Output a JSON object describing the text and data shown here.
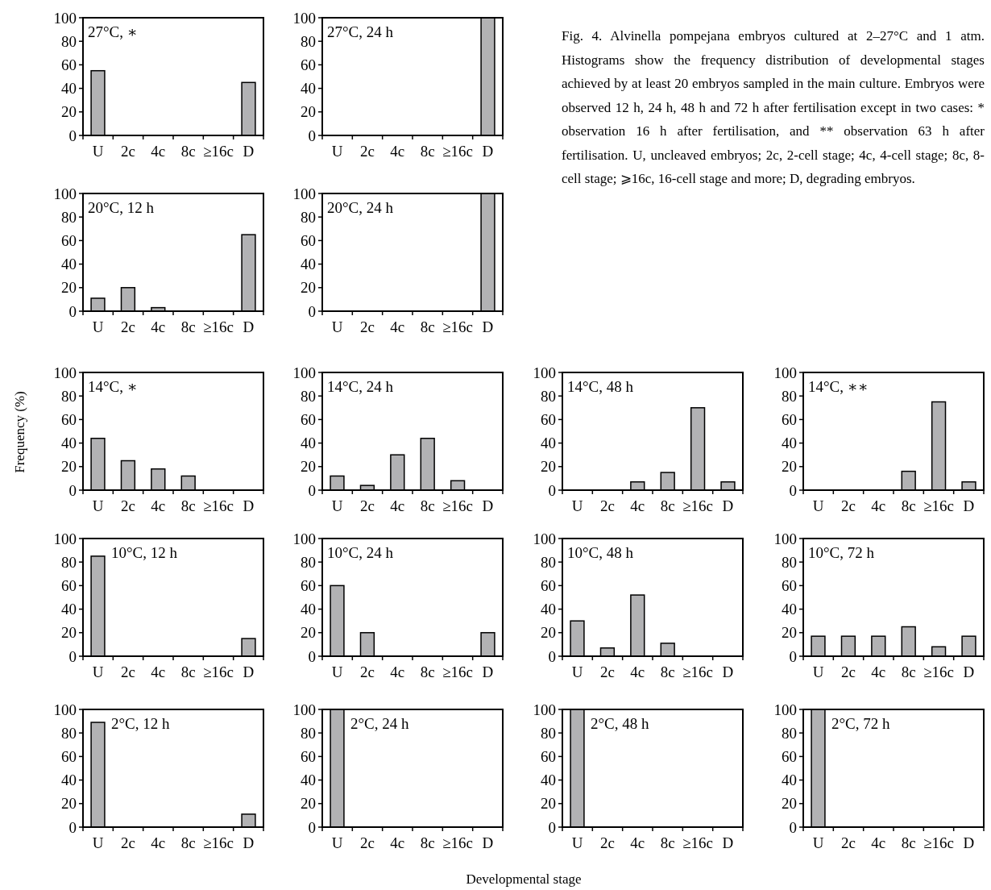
{
  "chart_data": [
    {
      "type": "bar",
      "title": "27°C, ∗",
      "categories": [
        "U",
        "2c",
        "4c",
        "8c",
        "≥16c",
        "D"
      ],
      "values": [
        55,
        0,
        0,
        0,
        0,
        45
      ],
      "color": "#b2b2b4",
      "ylim": [
        0,
        100
      ],
      "yticks": [
        0,
        20,
        40,
        60,
        80,
        100
      ],
      "annotations": [
        "Fig. 4. Alvinella pompejana embryos cultured at 2–27°C and 1 atm. Histograms show the frequency distribution of developmental stages achieved by at least 20 embryos sampled in the main culture. Embryos were observed 12 h, 24 h, 48 h and 72 h after fertilisation except in two cases: * observation 16 h after fertilisation, and ** observation 63 h after fertilisation. U, uncleaved embryos; 2c, 2-cell stage; 4c, 4-cell stage; 8c, 8-cell stage; ⩾16c, 16-cell stage and more; D, degrading embryos."
      ]
    },
    {
      "type": "bar",
      "title": "27°C, 24 h",
      "categories": [
        "U",
        "2c",
        "4c",
        "8c",
        "≥16c",
        "D"
      ],
      "values": [
        0,
        0,
        0,
        0,
        0,
        100
      ],
      "color": "#b2b2b4",
      "ylim": [
        0,
        100
      ],
      "yticks": [
        0,
        20,
        40,
        60,
        80,
        100
      ]
    },
    {
      "type": "bar",
      "title": "20°C, 12 h",
      "categories": [
        "U",
        "2c",
        "4c",
        "8c",
        "≥16c",
        "D"
      ],
      "values": [
        11,
        20,
        3,
        0,
        0,
        65
      ],
      "color": "#b2b2b4",
      "ylim": [
        0,
        100
      ],
      "yticks": [
        0,
        20,
        40,
        60,
        80,
        100
      ]
    },
    {
      "type": "bar",
      "title": "20°C, 24 h",
      "categories": [
        "U",
        "2c",
        "4c",
        "8c",
        "≥16c",
        "D"
      ],
      "values": [
        0,
        0,
        0,
        0,
        0,
        100
      ],
      "color": "#b2b2b4",
      "ylim": [
        0,
        100
      ],
      "yticks": [
        0,
        20,
        40,
        60,
        80,
        100
      ]
    },
    {
      "type": "bar",
      "title": "14°C, ∗",
      "ylabel": "Frequency (%)",
      "categories": [
        "U",
        "2c",
        "4c",
        "8c",
        "≥16c",
        "D"
      ],
      "values": [
        44,
        25,
        18,
        12,
        0,
        0
      ],
      "color": "#b2b2b4",
      "ylim": [
        0,
        100
      ],
      "yticks": [
        0,
        20,
        40,
        60,
        80,
        100
      ]
    },
    {
      "type": "bar",
      "title": "14°C, 24 h",
      "categories": [
        "U",
        "2c",
        "4c",
        "8c",
        "≥16c",
        "D"
      ],
      "values": [
        12,
        4,
        30,
        44,
        8,
        0
      ],
      "color": "#b2b2b4",
      "ylim": [
        0,
        100
      ],
      "yticks": [
        0,
        20,
        40,
        60,
        80,
        100
      ]
    },
    {
      "type": "bar",
      "title": "14°C, 48 h",
      "categories": [
        "U",
        "2c",
        "4c",
        "8c",
        "≥16c",
        "D"
      ],
      "values": [
        0,
        0,
        7,
        15,
        70,
        7
      ],
      "color": "#b2b2b4",
      "ylim": [
        0,
        100
      ],
      "yticks": [
        0,
        20,
        40,
        60,
        80,
        100
      ]
    },
    {
      "type": "bar",
      "title": "14°C, ∗∗",
      "categories": [
        "U",
        "2c",
        "4c",
        "8c",
        "≥16c",
        "D"
      ],
      "values": [
        0,
        0,
        0,
        16,
        75,
        7
      ],
      "color": "#b2b2b4",
      "ylim": [
        0,
        100
      ],
      "yticks": [
        0,
        20,
        40,
        60,
        80,
        100
      ]
    },
    {
      "type": "bar",
      "title": "10°C, 12 h",
      "categories": [
        "U",
        "2c",
        "4c",
        "8c",
        "≥16c",
        "D"
      ],
      "values": [
        85,
        0,
        0,
        0,
        0,
        15
      ],
      "color": "#b2b2b4",
      "ylim": [
        0,
        100
      ],
      "yticks": [
        0,
        20,
        40,
        60,
        80,
        100
      ]
    },
    {
      "type": "bar",
      "title": "10°C, 24 h",
      "categories": [
        "U",
        "2c",
        "4c",
        "8c",
        "≥16c",
        "D"
      ],
      "values": [
        60,
        20,
        0,
        0,
        0,
        20
      ],
      "color": "#b2b2b4",
      "ylim": [
        0,
        100
      ],
      "yticks": [
        0,
        20,
        40,
        60,
        80,
        100
      ]
    },
    {
      "type": "bar",
      "title": "10°C, 48 h",
      "categories": [
        "U",
        "2c",
        "4c",
        "8c",
        "≥16c",
        "D"
      ],
      "values": [
        30,
        7,
        52,
        11,
        0,
        0
      ],
      "color": "#b2b2b4",
      "ylim": [
        0,
        100
      ],
      "yticks": [
        0,
        20,
        40,
        60,
        80,
        100
      ]
    },
    {
      "type": "bar",
      "title": "10°C, 72 h",
      "categories": [
        "U",
        "2c",
        "4c",
        "8c",
        "≥16c",
        "D"
      ],
      "values": [
        17,
        17,
        17,
        25,
        8,
        17
      ],
      "color": "#b2b2b4",
      "ylim": [
        0,
        100
      ],
      "yticks": [
        0,
        20,
        40,
        60,
        80,
        100
      ]
    },
    {
      "type": "bar",
      "title": "2°C, 12 h",
      "categories": [
        "U",
        "2c",
        "4c",
        "8c",
        "≥16c",
        "D"
      ],
      "values": [
        89,
        0,
        0,
        0,
        0,
        11
      ],
      "color": "#b2b2b4",
      "ylim": [
        0,
        100
      ],
      "yticks": [
        0,
        20,
        40,
        60,
        80,
        100
      ]
    },
    {
      "type": "bar",
      "title": "2°C, 24 h",
      "xlabel": "Developmental stage",
      "categories": [
        "U",
        "2c",
        "4c",
        "8c",
        "≥16c",
        "D"
      ],
      "values": [
        100,
        0,
        0,
        0,
        0,
        0
      ],
      "color": "#b2b2b4",
      "ylim": [
        0,
        100
      ],
      "yticks": [
        0,
        20,
        40,
        60,
        80,
        100
      ]
    },
    {
      "type": "bar",
      "title": "2°C, 48 h",
      "categories": [
        "U",
        "2c",
        "4c",
        "8c",
        "≥16c",
        "D"
      ],
      "values": [
        100,
        0,
        0,
        0,
        0,
        0
      ],
      "color": "#b2b2b4",
      "ylim": [
        0,
        100
      ],
      "yticks": [
        0,
        20,
        40,
        60,
        80,
        100
      ]
    },
    {
      "type": "bar",
      "title": "2°C, 72 h",
      "categories": [
        "U",
        "2c",
        "4c",
        "8c",
        "≥16c",
        "D"
      ],
      "values": [
        100,
        0,
        0,
        0,
        0,
        0
      ],
      "color": "#b2b2b4",
      "ylim": [
        0,
        100
      ],
      "yticks": [
        0,
        20,
        40,
        60,
        80,
        100
      ]
    }
  ]
}
